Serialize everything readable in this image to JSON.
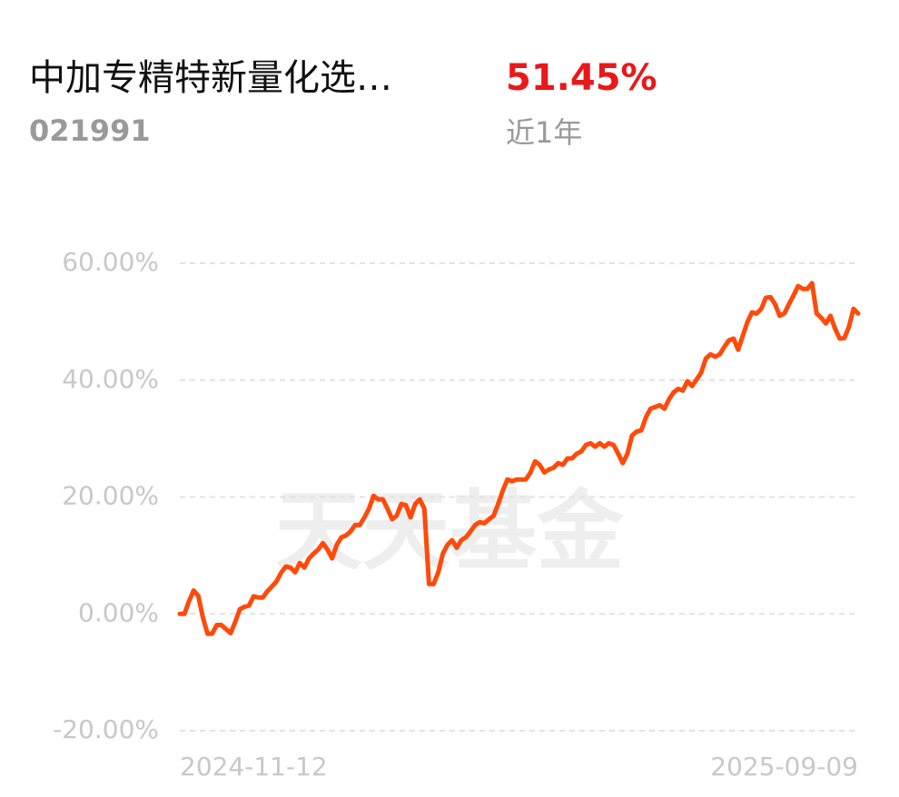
{
  "chart_data": {
    "type": "line",
    "title": "中加专精特新量化选…",
    "code": "021991",
    "return_label": "51.45%",
    "period": "近1年",
    "watermark": "天天基金",
    "categories": [
      "2024-11-12",
      null,
      null,
      null,
      null,
      null,
      null,
      null,
      null,
      null,
      null,
      null,
      null,
      null,
      null,
      null,
      null,
      null,
      null,
      null,
      null,
      null,
      null,
      null,
      null,
      null,
      null,
      null,
      null,
      null,
      null,
      null,
      null,
      null,
      null,
      null,
      null,
      null,
      null,
      null,
      null,
      null,
      null,
      null,
      null,
      null,
      null,
      null,
      null,
      null,
      null,
      null,
      null,
      null,
      null,
      null,
      null,
      null,
      null,
      null,
      null,
      null,
      null,
      null,
      null,
      null,
      null,
      null,
      null,
      null,
      null,
      null,
      null,
      null,
      null,
      null,
      null,
      null,
      null,
      null,
      null,
      null,
      null,
      null,
      null,
      null,
      null,
      null,
      null,
      null,
      null,
      null,
      null,
      null,
      null,
      null,
      null,
      null,
      null,
      null,
      null,
      null,
      null,
      null,
      null,
      null,
      null,
      null,
      null,
      null,
      null,
      null,
      null,
      null,
      null,
      null,
      null,
      null,
      null,
      null,
      null,
      null,
      null,
      null,
      null,
      null,
      null,
      null,
      null,
      null,
      null,
      null,
      null,
      null,
      null,
      null,
      null,
      null,
      null,
      null,
      null,
      null,
      null,
      null,
      null,
      null,
      null,
      "2025-09-09"
    ],
    "series": [
      {
        "color": "#ff4a0a",
        "values": [
          0,
          0,
          2.2,
          4.0,
          3.1,
          -0.6,
          -3.4,
          -3.4,
          -1.9,
          -1.9,
          -2.6,
          -3.3,
          -1.4,
          0.8,
          1.2,
          1.4,
          3.0,
          2.8,
          2.8,
          3.9,
          4.7,
          5.6,
          7.1,
          8.1,
          7.9,
          7.1,
          8.7,
          7.9,
          9.5,
          10.3,
          11.0,
          12.1,
          11.0,
          9.5,
          11.8,
          13.1,
          13.4,
          14.1,
          15.2,
          15.2,
          16.5,
          18.0,
          20.2,
          19.6,
          19.6,
          18.0,
          16.2,
          16.8,
          18.8,
          18.6,
          16.5,
          18.8,
          19.6,
          18.0,
          5.1,
          5.1,
          7.1,
          10.3,
          11.8,
          12.6,
          11.3,
          12.6,
          13.1,
          14.1,
          15.2,
          15.7,
          15.5,
          16.2,
          16.8,
          18.8,
          21.1,
          23.0,
          22.7,
          23.0,
          23.0,
          23.0,
          24.2,
          26.1,
          25.5,
          24.2,
          24.7,
          25.0,
          25.8,
          25.5,
          26.6,
          26.6,
          27.4,
          27.8,
          28.9,
          29.2,
          28.6,
          29.2,
          28.6,
          29.2,
          28.9,
          27.4,
          25.8,
          27.4,
          30.5,
          31.2,
          31.4,
          33.6,
          35.1,
          35.4,
          35.7,
          35.1,
          36.7,
          37.9,
          38.5,
          38.2,
          39.8,
          39.0,
          40.1,
          41.3,
          43.7,
          44.4,
          44.0,
          44.4,
          45.7,
          46.8,
          47.1,
          45.2,
          47.6,
          49.9,
          51.6,
          51.4,
          52.2,
          54.1,
          54.2,
          53.0,
          51.0,
          51.4,
          53.0,
          54.5,
          56.1,
          55.6,
          55.6,
          56.6,
          51.4,
          50.7,
          49.7,
          51.0,
          48.8,
          47.1,
          47.2,
          49.1,
          52.2,
          51.4
        ]
      }
    ],
    "ylim": [
      -20,
      60
    ],
    "yticks": [
      {
        "value": -20,
        "label": "-20.00%"
      },
      {
        "value": 0,
        "label": "0.00%"
      },
      {
        "value": 20,
        "label": "20.00%"
      },
      {
        "value": 40,
        "label": "40.00%"
      },
      {
        "value": 60,
        "label": "60.00%"
      }
    ],
    "grid": true
  }
}
